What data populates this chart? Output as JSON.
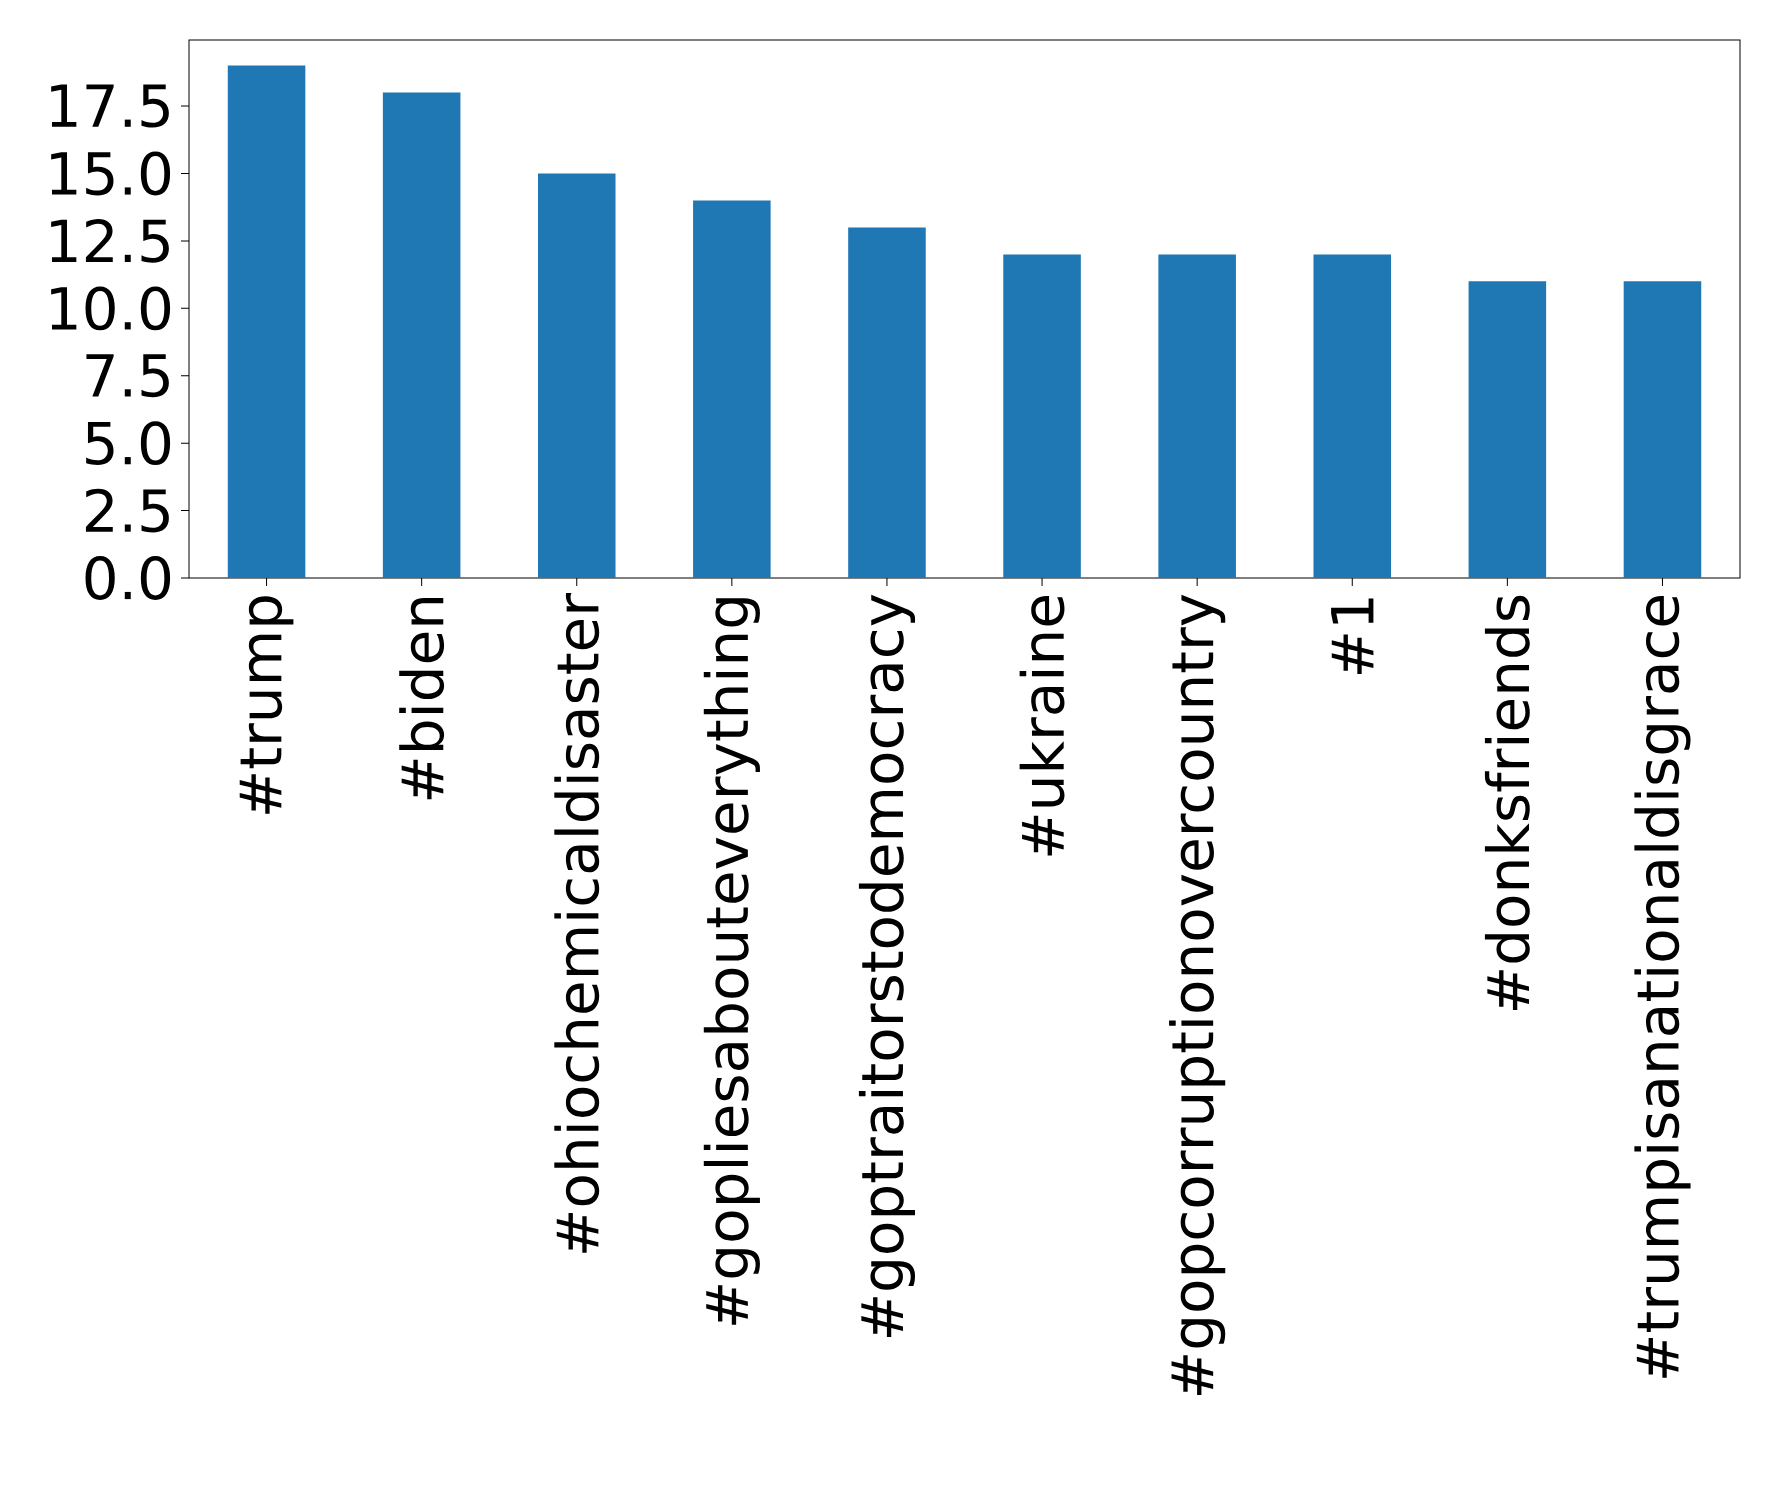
{
  "chart_data": {
    "type": "bar",
    "categories": [
      "#trump",
      "#biden",
      "#ohiochemicaldisaster",
      "#gopliesabouteverything",
      "#goptraitorstodemocracy",
      "#ukraine",
      "#gopcorruptionovercountry",
      "#1",
      "#donksfriends",
      "#trumpisanationaldisgrace"
    ],
    "values": [
      19,
      18,
      15,
      14,
      13,
      12,
      12,
      12,
      11,
      11
    ],
    "color": "#1f77b4",
    "ylim": [
      0,
      19.95
    ],
    "yticks": [
      {
        "value": 0,
        "label": "0.0"
      },
      {
        "value": 2.5,
        "label": "2.5"
      },
      {
        "value": 5,
        "label": "5.0"
      },
      {
        "value": 7.5,
        "label": "7.5"
      },
      {
        "value": 10,
        "label": "10.0"
      },
      {
        "value": 12.5,
        "label": "12.5"
      },
      {
        "value": 15,
        "label": "15.0"
      },
      {
        "value": 17.5,
        "label": "17.5"
      }
    ],
    "grid": false
  }
}
